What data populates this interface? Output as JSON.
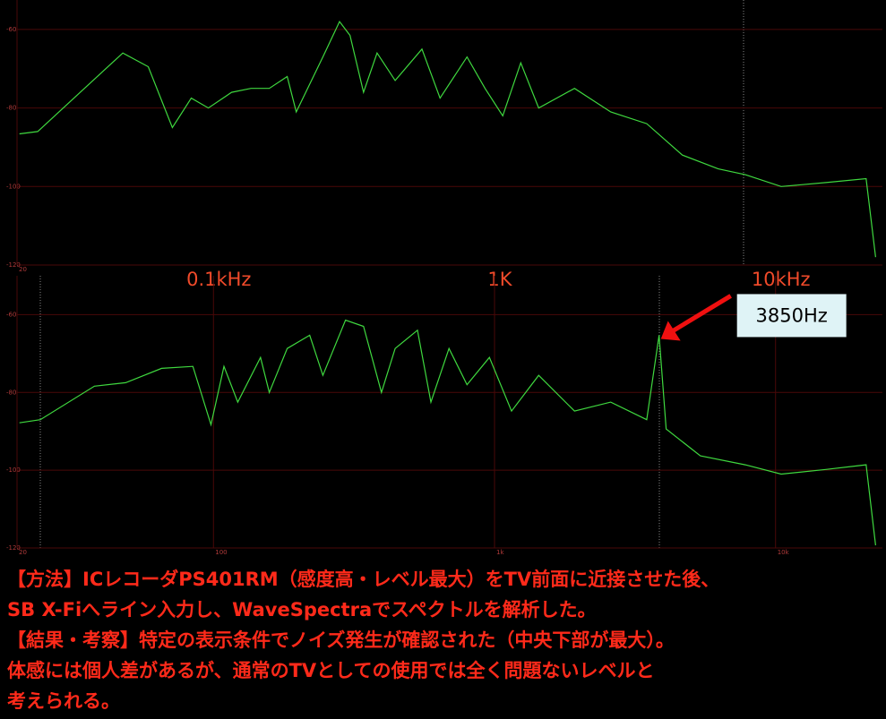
{
  "chart_data": [
    {
      "type": "line",
      "log_x": true,
      "grid": true,
      "color": "#3fd83f",
      "xlim": [
        20,
        24000
      ],
      "ylim": [
        -120,
        -52.5
      ],
      "xticks": [
        20
      ],
      "yticks": [
        -60,
        -80,
        -100,
        -120
      ],
      "x": [
        20.4,
        23.7,
        47.6,
        58.6,
        71.4,
        83.4,
        95.9,
        116,
        136,
        158,
        183,
        197,
        245,
        281,
        306,
        342,
        382,
        443,
        552,
        640,
        798,
        925,
        1070,
        1240,
        1436,
        1926,
        2590,
        3480,
        4660,
        6250,
        7800,
        10470,
        15100,
        21000,
        22700
      ],
      "values": [
        -86.6,
        -86,
        -66,
        -69.5,
        -85,
        -77.5,
        -80,
        -76,
        -75,
        -75,
        -72,
        -81,
        -67,
        -58,
        -61.5,
        -76,
        -66,
        -73,
        -65,
        -77.5,
        -67,
        -75,
        -82,
        -68.5,
        -80,
        -75,
        -81,
        -84,
        -92,
        -95.5,
        -97,
        -100,
        -99,
        -98,
        -118
      ],
      "annotations": [
        {
          "text": "0.1kHz",
          "x": 100
        },
        {
          "text": "1K",
          "x": 1000
        },
        {
          "text": "10kHz",
          "x": 10000
        }
      ]
    },
    {
      "type": "line",
      "log_x": true,
      "grid": true,
      "color": "#3fd83f",
      "xlim": [
        20,
        24000
      ],
      "ylim": [
        -120,
        -50
      ],
      "xticks": [
        20,
        100,
        {
          "value": 1000,
          "label": "1k"
        },
        {
          "value": 10000,
          "label": "10k"
        }
      ],
      "yticks": [
        -60,
        -80,
        -100,
        -120
      ],
      "x": [
        20.4,
        24.2,
        37.7,
        48.7,
        65.4,
        84.5,
        98,
        109,
        122,
        147,
        158,
        183,
        220,
        245,
        295,
        342,
        396,
        443,
        532,
        594,
        689,
        798,
        959,
        1150,
        1436,
        1926,
        2590,
        3480,
        3850,
        4080,
        5400,
        7800,
        10470,
        15100,
        21000,
        22700
      ],
      "values": [
        -87.8,
        -87,
        -78.4,
        -77.5,
        -73.8,
        -73.3,
        -88.3,
        -73.3,
        -82.5,
        -71,
        -80,
        -68.7,
        -65.3,
        -75.6,
        -61.4,
        -63,
        -80,
        -68.7,
        -64,
        -82.5,
        -68.7,
        -78,
        -71,
        -84.8,
        -75.6,
        -84.8,
        -82.5,
        -87,
        -65.3,
        -89.4,
        -96.3,
        -98.6,
        -101,
        -99.8,
        -98.6,
        -119.3
      ],
      "annotations": [
        {
          "text": "3850Hz",
          "x": 3850,
          "y": -65.3
        }
      ]
    }
  ],
  "caption": [
    "【方法】ICレコーダPS401RM（感度高・レベル最大）をTV前面に近接させた後、",
    "SB X-Fiへライン入力し、WaveSpectraでスペクトルを解析した。",
    "【結果・考察】特定の表示条件でノイズ発生が確認された（中央下部が最大）。",
    "体感には個人差があるが、通常のTVとしての使用では全く問題ないレベルと",
    "考えられる。"
  ]
}
